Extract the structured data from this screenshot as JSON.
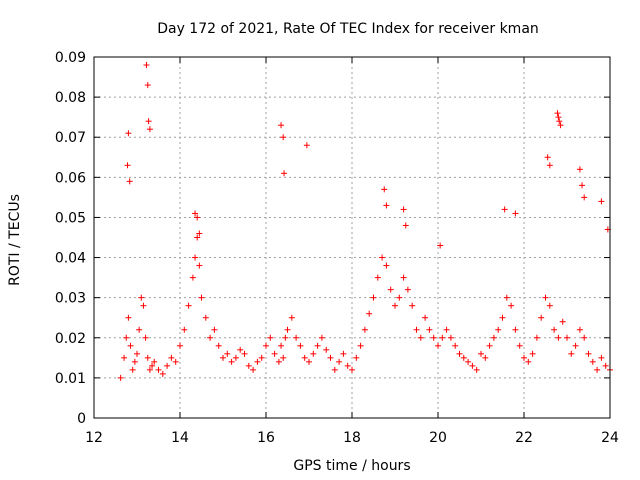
{
  "chart_data": {
    "type": "scatter",
    "title": "Day 172 of 2021, Rate Of TEC Index for receiver kman",
    "xlabel": "GPS time / hours",
    "ylabel": "ROTI / TECUs",
    "xlim": [
      12,
      24
    ],
    "ylim": [
      0,
      0.09
    ],
    "xticks": [
      "12",
      "14",
      "16",
      "18",
      "20",
      "22",
      "24"
    ],
    "yticks": [
      "0",
      "0.01",
      "0.02",
      "0.03",
      "0.04",
      "0.05",
      "0.06",
      "0.07",
      "0.08",
      "0.09"
    ],
    "grid": true,
    "marker": "plus",
    "color": "#ff0000",
    "series": [
      {
        "name": "ROTI",
        "x": [
          12.62,
          12.7,
          12.75,
          12.8,
          12.85,
          12.9,
          12.95,
          13.0,
          13.05,
          13.1,
          13.15,
          13.2,
          13.25,
          13.3,
          13.35,
          13.4,
          13.5,
          13.6,
          13.7,
          13.8,
          13.9,
          14.0,
          14.1,
          14.2,
          14.3,
          14.35,
          14.4,
          14.45,
          14.5,
          14.6,
          14.7,
          14.8,
          14.9,
          15.0,
          15.1,
          15.2,
          15.3,
          15.4,
          15.5,
          15.6,
          15.7,
          15.8,
          15.9,
          16.0,
          16.1,
          16.2,
          16.3,
          16.35,
          16.4,
          16.45,
          16.5,
          16.6,
          16.7,
          16.8,
          16.9,
          17.0,
          17.1,
          17.2,
          17.3,
          17.4,
          17.5,
          17.6,
          17.7,
          17.8,
          17.9,
          18.0,
          18.1,
          18.2,
          18.3,
          18.4,
          18.5,
          18.6,
          18.7,
          18.8,
          18.9,
          19.0,
          19.1,
          19.2,
          19.3,
          19.4,
          19.5,
          19.6,
          19.7,
          19.8,
          19.9,
          20.0,
          20.1,
          20.2,
          20.3,
          20.4,
          20.5,
          20.6,
          20.7,
          20.8,
          20.9,
          21.0,
          21.1,
          21.2,
          21.3,
          21.4,
          21.5,
          21.6,
          21.7,
          21.8,
          21.9,
          22.0,
          22.1,
          22.2,
          22.3,
          22.4,
          22.5,
          22.6,
          22.7,
          22.8,
          22.9,
          23.0,
          23.1,
          23.2,
          23.3,
          23.4,
          23.5,
          23.6,
          23.7,
          23.8,
          23.9,
          24.0,
          12.78,
          12.8,
          12.83,
          13.22,
          13.25,
          13.27,
          13.3,
          14.35,
          14.4,
          14.45,
          16.35,
          16.4,
          16.42,
          16.95,
          18.75,
          18.8,
          19.2,
          19.25,
          20.05,
          21.55,
          21.8,
          22.55,
          22.6,
          22.78,
          22.8,
          22.82,
          22.85,
          23.3,
          23.35,
          23.4,
          23.8,
          23.95
        ],
        "y": [
          0.01,
          0.015,
          0.02,
          0.025,
          0.018,
          0.012,
          0.014,
          0.016,
          0.022,
          0.03,
          0.028,
          0.02,
          0.015,
          0.012,
          0.013,
          0.014,
          0.012,
          0.011,
          0.013,
          0.015,
          0.014,
          0.018,
          0.022,
          0.028,
          0.035,
          0.04,
          0.045,
          0.038,
          0.03,
          0.025,
          0.02,
          0.022,
          0.018,
          0.015,
          0.016,
          0.014,
          0.015,
          0.017,
          0.016,
          0.013,
          0.012,
          0.014,
          0.015,
          0.018,
          0.02,
          0.016,
          0.014,
          0.018,
          0.015,
          0.02,
          0.022,
          0.025,
          0.02,
          0.018,
          0.015,
          0.014,
          0.016,
          0.018,
          0.02,
          0.017,
          0.015,
          0.012,
          0.014,
          0.016,
          0.013,
          0.012,
          0.015,
          0.018,
          0.022,
          0.026,
          0.03,
          0.035,
          0.04,
          0.038,
          0.032,
          0.028,
          0.03,
          0.035,
          0.032,
          0.028,
          0.022,
          0.02,
          0.025,
          0.022,
          0.02,
          0.018,
          0.02,
          0.022,
          0.02,
          0.018,
          0.016,
          0.015,
          0.014,
          0.013,
          0.012,
          0.016,
          0.015,
          0.018,
          0.02,
          0.022,
          0.025,
          0.03,
          0.028,
          0.022,
          0.018,
          0.015,
          0.014,
          0.016,
          0.02,
          0.025,
          0.03,
          0.028,
          0.022,
          0.02,
          0.024,
          0.02,
          0.016,
          0.018,
          0.022,
          0.02,
          0.016,
          0.014,
          0.012,
          0.015,
          0.013,
          0.012,
          0.063,
          0.071,
          0.059,
          0.088,
          0.083,
          0.074,
          0.072,
          0.051,
          0.05,
          0.046,
          0.073,
          0.07,
          0.061,
          0.068,
          0.057,
          0.053,
          0.052,
          0.048,
          0.043,
          0.052,
          0.051,
          0.065,
          0.063,
          0.076,
          0.075,
          0.074,
          0.073,
          0.062,
          0.058,
          0.055,
          0.054,
          0.047
        ]
      }
    ]
  }
}
